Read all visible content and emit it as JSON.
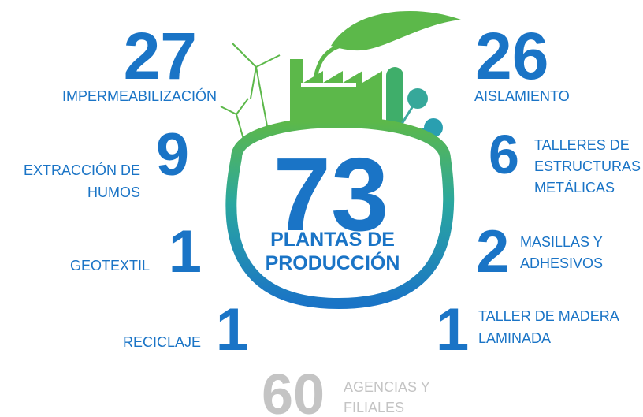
{
  "center": {
    "number": 73,
    "lines": [
      "PLANTAS DE",
      "PRODUCCIÓN"
    ]
  },
  "left": [
    {
      "number": 27,
      "lines": [
        "IMPERMEABILIZACIÓN"
      ]
    },
    {
      "number": 9,
      "lines": [
        "EXTRACCIÓN DE",
        "HUMOS"
      ]
    },
    {
      "number": 1,
      "lines": [
        "GEOTEXTIL"
      ]
    },
    {
      "number": 1,
      "lines": [
        "RECICLAJE"
      ]
    }
  ],
  "right": [
    {
      "number": 26,
      "lines": [
        "AISLAMIENTO"
      ]
    },
    {
      "number": 6,
      "lines": [
        "TALLERES DE",
        "ESTRUCTURAS",
        "METÁLICAS"
      ]
    },
    {
      "number": 2,
      "lines": [
        "MASILLAS Y",
        "ADHESIVOS"
      ]
    },
    {
      "number": 1,
      "lines": [
        "TALLER DE MADERA",
        "LAMINADA"
      ]
    }
  ],
  "bottom": {
    "number": 60,
    "lines": [
      "AGENCIAS Y",
      "FILIALES"
    ]
  }
}
